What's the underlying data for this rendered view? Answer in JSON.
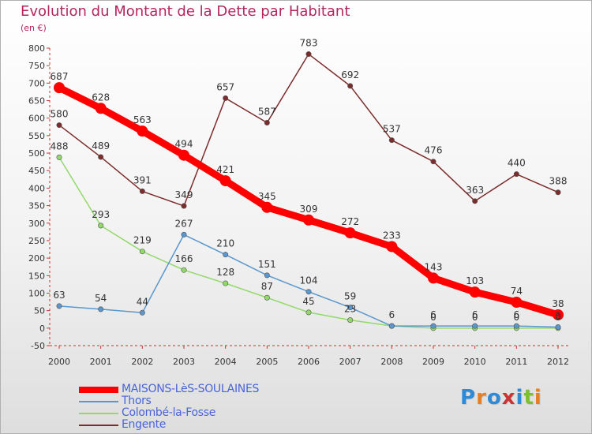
{
  "title": "Evolution du Montant de la Dette par Habitant",
  "subtitle": "(en €)",
  "logo": {
    "text": "Proxiti",
    "letters": [
      "P",
      "r",
      "o",
      "x",
      "i",
      "t",
      "i"
    ],
    "letter_colors": [
      "#2f8ad6",
      "#e67e22",
      "#2f8ad6",
      "#cc3333",
      "#2f8ad6",
      "#7cbf2f",
      "#e67e22"
    ]
  },
  "chart_data": {
    "type": "line",
    "title": "Evolution du Montant de la Dette par Habitant",
    "ylabel": "(en €)",
    "xlabel": "",
    "ylim": [
      -50,
      800
    ],
    "y_ticks": [
      -50,
      0,
      50,
      100,
      150,
      200,
      250,
      300,
      350,
      400,
      450,
      500,
      550,
      600,
      650,
      700,
      750,
      800
    ],
    "grid": false,
    "legend_position": "bottom-left",
    "x": [
      "2000",
      "2001",
      "2002",
      "2003",
      "2004",
      "2005",
      "2006",
      "2007",
      "2008",
      "2009",
      "2010",
      "2011",
      "2012"
    ],
    "series": [
      {
        "name": "MAISONS-LèS-SOULAINES",
        "color": "#ff0000",
        "values": [
          687,
          628,
          563,
          494,
          421,
          345,
          309,
          272,
          233,
          143,
          103,
          74,
          38
        ],
        "labels": [
          "687",
          "628",
          "563",
          "494",
          "421",
          "345",
          "309",
          "272",
          "233",
          "143",
          "103",
          "74",
          "38"
        ],
        "emphasis": true
      },
      {
        "name": "Thors",
        "color": "#5b97cf",
        "values": [
          63,
          54,
          44,
          267,
          210,
          151,
          104,
          59,
          6,
          6,
          6,
          6,
          3
        ],
        "labels": [
          "63",
          "54",
          "44",
          "267",
          "210",
          "151",
          "104",
          "59",
          "6",
          "6",
          "6",
          "6",
          "3"
        ]
      },
      {
        "name": "Colombé-la-Fosse",
        "color": "#92d96a",
        "values": [
          488,
          293,
          219,
          166,
          128,
          87,
          45,
          23,
          6,
          0,
          0,
          0,
          0
        ],
        "labels": [
          "488",
          "293",
          "219",
          "166",
          "128",
          "87",
          "45",
          "23",
          "",
          "0",
          "0",
          "0",
          "0"
        ]
      },
      {
        "name": "Engente",
        "color": "#7d2c2c",
        "values": [
          580,
          489,
          391,
          349,
          657,
          587,
          783,
          692,
          537,
          476,
          363,
          440,
          388
        ],
        "labels": [
          "580",
          "489",
          "391",
          "349",
          "657",
          "587",
          "783",
          "692",
          "537",
          "476",
          "363",
          "440",
          "388"
        ]
      }
    ]
  }
}
